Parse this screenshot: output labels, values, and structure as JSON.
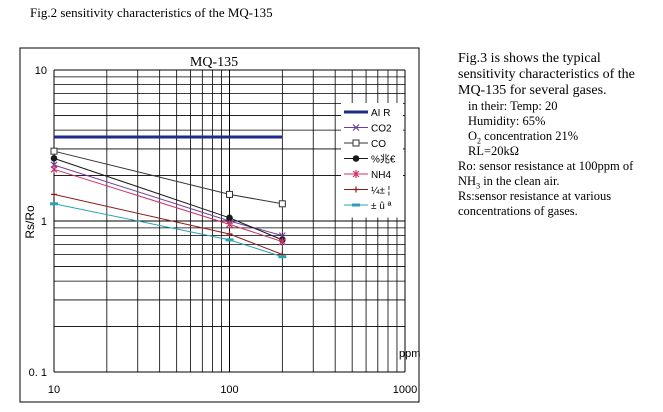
{
  "figure_caption": "Fig.2 sensitivity characteristics of the MQ-135",
  "description": {
    "intro": "Fig.3 is shows the typical sensitivity characteristics of the MQ-135 for several gases.",
    "temp": "in their: Temp: 20",
    "humidity": "Humidity: 65%",
    "o2_prefix": "O",
    "o2_sub": "2",
    "o2_suffix": " concentration 21%",
    "rl": "RL=20kΩ",
    "ro_prefix": "Ro: sensor resistance at 100ppm of NH",
    "ro_sub": "3",
    "ro_suffix": " in the clean air.",
    "rs": "Rs:sensor resistance at various concentrations of gases."
  },
  "chart_data": {
    "type": "line",
    "title": "MQ-135",
    "ylabel": "Rs/Ro",
    "xlabel": "ppm",
    "x_scale": "log",
    "y_scale": "log",
    "xlim": [
      10,
      1000
    ],
    "ylim": [
      0.1,
      10
    ],
    "x_tick_labels": [
      "10",
      "100",
      "1000"
    ],
    "y_tick_labels": [
      "0. 1",
      "1",
      "10"
    ],
    "grid": true,
    "legend_position": "inside-right",
    "series": [
      {
        "name": "AI R",
        "color": "#1f2a8a",
        "marker": "none",
        "x": [
          10,
          200
        ],
        "y": [
          3.6,
          3.6
        ]
      },
      {
        "name": "CO2",
        "color": "#6d3fa0",
        "marker": "x",
        "x": [
          10,
          100,
          200
        ],
        "y": [
          2.35,
          1.0,
          0.8
        ]
      },
      {
        "name": "CO",
        "color": "#333333",
        "marker": "square",
        "x": [
          10,
          100,
          200
        ],
        "y": [
          2.9,
          1.5,
          1.3
        ]
      },
      {
        "name": "NH4 (garbled glyph)",
        "color": "#1a1a1a",
        "marker": "circle",
        "x": [
          10,
          100,
          200
        ],
        "y": [
          2.6,
          1.05,
          0.75
        ]
      },
      {
        "name": "NH4",
        "color": "#cc3366",
        "marker": "star",
        "x": [
          10,
          100,
          200
        ],
        "y": [
          2.2,
          0.95,
          0.73
        ]
      },
      {
        "name": "Alcohol (garbled glyph)",
        "color": "#8b1c1c",
        "marker": "plus",
        "x": [
          10,
          100,
          200
        ],
        "y": [
          1.5,
          0.82,
          0.6
        ]
      },
      {
        "name": "Toluene (garbled glyph)",
        "color": "#2aa3b0",
        "marker": "dash",
        "x": [
          10,
          100,
          200
        ],
        "y": [
          1.3,
          0.75,
          0.58
        ]
      }
    ],
    "legend_labels": [
      "AI R",
      "CO2",
      "CO",
      "%兆€",
      "NH4",
      "¼± ¦",
      "± û ª"
    ]
  }
}
